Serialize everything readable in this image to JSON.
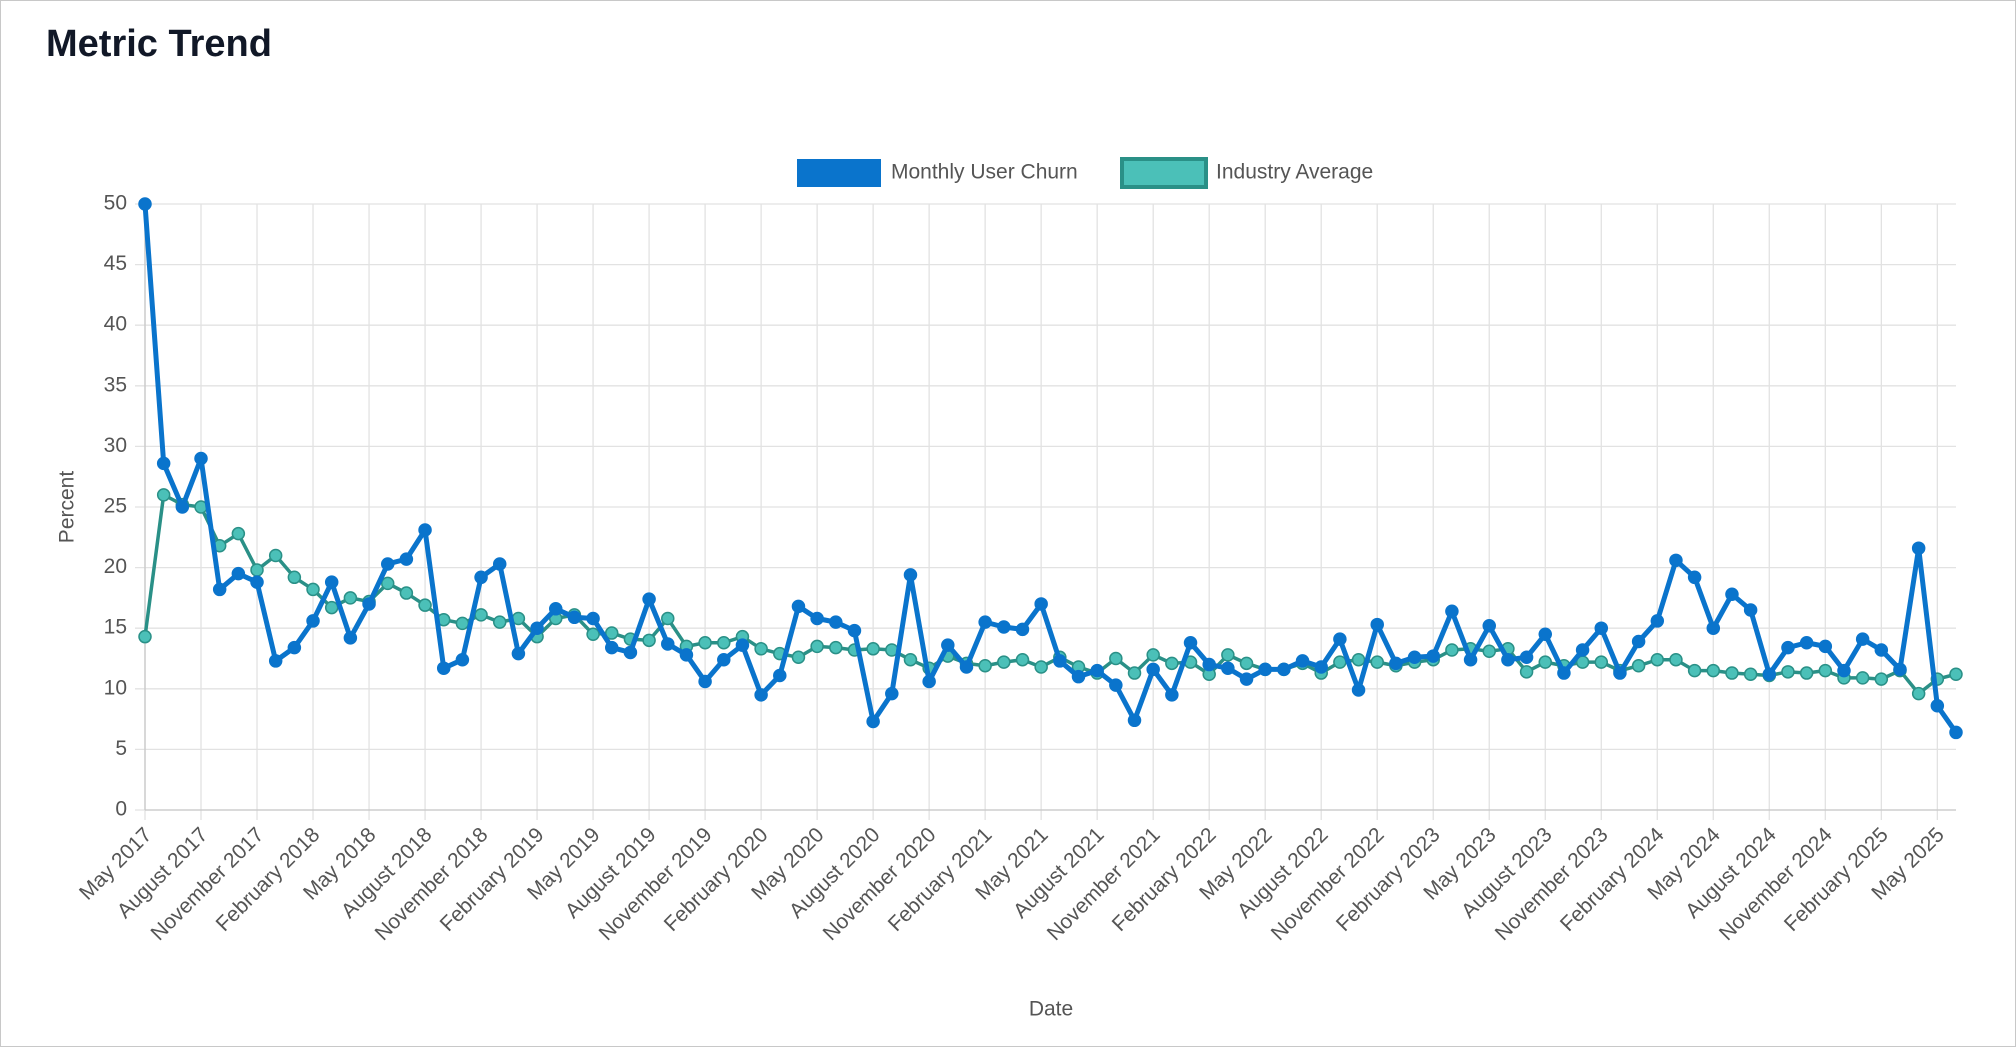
{
  "chart_data": {
    "type": "line",
    "title": "Metric Trend",
    "x_label": "Date",
    "y_label": "Percent",
    "categories": [
      "May 2017",
      null,
      null,
      "August 2017",
      null,
      null,
      "November 2017",
      null,
      null,
      "February 2018",
      null,
      null,
      "May 2018",
      null,
      null,
      "August 2018",
      null,
      null,
      "November 2018",
      null,
      null,
      "February 2019",
      null,
      null,
      "May 2019",
      null,
      null,
      "August 2019",
      null,
      null,
      "November 2019",
      null,
      null,
      "February 2020",
      null,
      null,
      "May 2020",
      null,
      null,
      "August 2020",
      null,
      null,
      "November 2020",
      null,
      null,
      "February 2021",
      null,
      null,
      "May 2021",
      null,
      null,
      "August 2021",
      null,
      null,
      "November 2021",
      null,
      null,
      "February 2022",
      null,
      null,
      "May 2022",
      null,
      null,
      "August 2022",
      null,
      null,
      "November 2022",
      null,
      null,
      "February 2023",
      null,
      null,
      "May 2023",
      null,
      null,
      "August 2023",
      null,
      null,
      "November 2023",
      null,
      null,
      "February 2024",
      null,
      null,
      "May 2024",
      null,
      null,
      "August 2024",
      null,
      null,
      "November 2024",
      null,
      null,
      "February 2025",
      null,
      null,
      "May 2025",
      null
    ],
    "series": [
      {
        "name": "Monthly User Churn",
        "color": "#0a74cc",
        "values": [
          50,
          28.6,
          25,
          29,
          18.2,
          19.5,
          18.8,
          12.3,
          13.4,
          15.6,
          18.8,
          14.2,
          17,
          20.3,
          20.7,
          23.1,
          11.7,
          12.4,
          19.2,
          20.3,
          12.9,
          15,
          16.6,
          15.9,
          15.8,
          13.4,
          13,
          17.4,
          13.7,
          12.8,
          10.6,
          12.4,
          13.6,
          9.5,
          11.1,
          16.8,
          15.8,
          15.5,
          14.8,
          7.3,
          9.6,
          19.4,
          10.6,
          13.6,
          11.8,
          15.5,
          15.1,
          14.9,
          17,
          12.3,
          11,
          11.5,
          10.3,
          7.4,
          11.6,
          9.5,
          13.8,
          12,
          11.7,
          10.8,
          11.6,
          11.6,
          12.3,
          11.8,
          14.1,
          9.9,
          15.3,
          12.1,
          12.6,
          12.7,
          16.4,
          12.4,
          15.2,
          12.4,
          12.6,
          14.5,
          11.3,
          13.2,
          15,
          11.3,
          13.9,
          15.6,
          20.6,
          19.2,
          15,
          17.8,
          16.5,
          11.2,
          13.4,
          13.8,
          13.5,
          11.5,
          14.1,
          13.2,
          11.6,
          21.6,
          8.6,
          6.4
        ]
      },
      {
        "name": "Industry Average",
        "color": "#4bc0b8",
        "values": [
          14.3,
          26,
          25.2,
          25,
          21.8,
          22.8,
          19.8,
          21,
          19.2,
          18.2,
          16.7,
          17.5,
          17.2,
          18.7,
          17.9,
          16.9,
          15.7,
          15.4,
          16.1,
          15.5,
          15.8,
          14.3,
          15.8,
          16.1,
          14.5,
          14.6,
          14.1,
          14,
          15.8,
          13.5,
          13.8,
          13.8,
          14.3,
          13.3,
          12.9,
          12.6,
          13.5,
          13.4,
          13.2,
          13.3,
          13.2,
          12.4,
          11.7,
          12.7,
          12.1,
          11.9,
          12.2,
          12.4,
          11.8,
          12.6,
          11.8,
          11.3,
          12.5,
          11.3,
          12.8,
          12.1,
          12.2,
          11.2,
          12.8,
          12.1,
          11.6,
          11.6,
          12.1,
          11.3,
          12.2,
          12.4,
          12.2,
          11.9,
          12.2,
          12.4,
          13.2,
          13.3,
          13.1,
          13.3,
          11.4,
          12.2,
          11.9,
          12.2,
          12.2,
          11.5,
          11.9,
          12.4,
          12.4,
          11.5,
          11.5,
          11.3,
          11.2,
          11.1,
          11.4,
          11.3,
          11.5,
          10.9,
          10.9,
          10.8,
          11.5,
          9.6,
          10.8,
          11.2
        ]
      }
    ],
    "ylim": [
      0,
      50
    ],
    "yticks": [
      0,
      5,
      10,
      15,
      20,
      25,
      30,
      35,
      40,
      45,
      50
    ],
    "grid": true,
    "legend": "top"
  }
}
